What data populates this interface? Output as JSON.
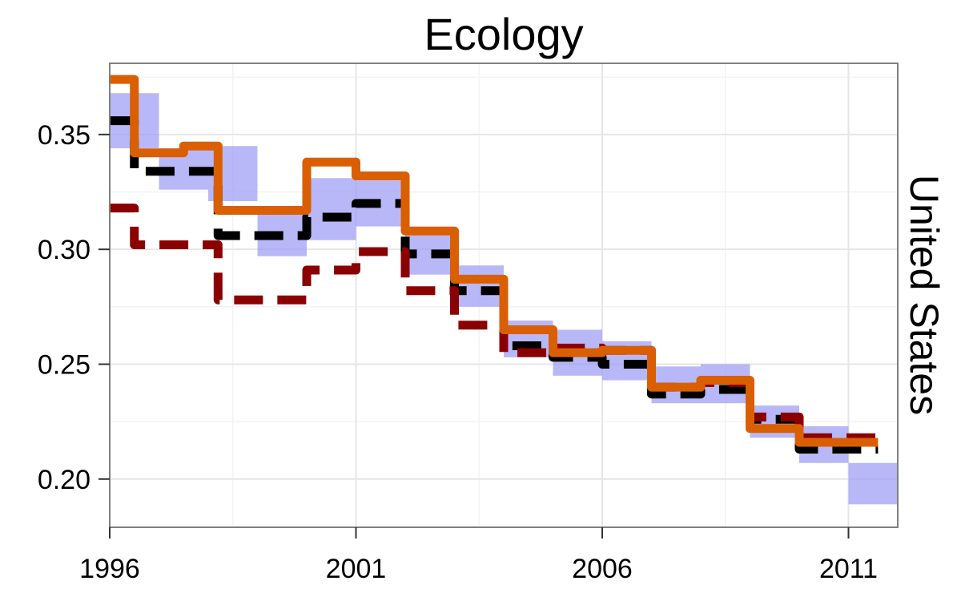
{
  "chart_data": {
    "type": "line",
    "title": "Ecology",
    "facet_label": "United States",
    "xlabel": "",
    "ylabel": "",
    "xlim": [
      1996,
      2012
    ],
    "ylim": [
      0.179,
      0.381
    ],
    "x_ticks": [
      {
        "value": 1996,
        "label": "1996"
      },
      {
        "value": 2001,
        "label": "2001"
      },
      {
        "value": 2006,
        "label": "2006"
      },
      {
        "value": 2011,
        "label": "2011"
      }
    ],
    "y_ticks": [
      {
        "value": 0.2,
        "label": "0.20"
      },
      {
        "value": 0.25,
        "label": "0.25"
      },
      {
        "value": 0.3,
        "label": "0.30"
      },
      {
        "value": 0.35,
        "label": "0.35"
      }
    ],
    "grid": true,
    "legend": "none",
    "colors": {
      "panel_border": "#7f7f7f",
      "grid_major": "#e6e6e6",
      "grid_minor": "#f3f3f3",
      "band": "#9d9df5",
      "black_series": "#000000",
      "red_series": "#8b0000",
      "orange_series": "#d95f02"
    },
    "band": {
      "x": [
        1996,
        1997,
        1998,
        1999,
        2000,
        2001,
        2002,
        2003,
        2004,
        2005,
        2006,
        2007,
        2008,
        2009,
        2010,
        2011
      ],
      "lower": [
        0.344,
        0.326,
        0.321,
        0.297,
        0.304,
        0.31,
        0.289,
        0.275,
        0.253,
        0.245,
        0.243,
        0.233,
        0.233,
        0.218,
        0.207,
        0.189
      ],
      "upper": [
        0.368,
        0.344,
        0.345,
        0.316,
        0.331,
        0.33,
        0.308,
        0.293,
        0.269,
        0.265,
        0.26,
        0.249,
        0.25,
        0.232,
        0.223,
        0.207
      ]
    },
    "series": [
      {
        "style": "dashed",
        "color": "#000000",
        "x": [
          1996,
          1996.5,
          1998.2,
          2000,
          2001,
          2002,
          2003,
          2004,
          2005,
          2006,
          2007,
          2008,
          2009,
          2010,
          2011.6
        ],
        "values": [
          0.356,
          0.334,
          0.306,
          0.314,
          0.32,
          0.298,
          0.282,
          0.258,
          0.253,
          0.25,
          0.237,
          0.239,
          0.226,
          0.213,
          0.202
        ]
      },
      {
        "style": "dashed",
        "color": "#8b0000",
        "x": [
          1996,
          1996.5,
          1998.2,
          2000,
          2001,
          2002,
          2003,
          2004,
          2005,
          2006,
          2007,
          2008,
          2009,
          2010,
          2011.6
        ],
        "values": [
          0.318,
          0.302,
          0.278,
          0.291,
          0.299,
          0.282,
          0.267,
          0.255,
          0.257,
          0.256,
          0.24,
          0.242,
          0.227,
          0.218,
          0.217
        ]
      },
      {
        "style": "solid",
        "color": "#d95f02",
        "x": [
          1996,
          1996.5,
          1997.5,
          1998.2,
          2000,
          2001,
          2002,
          2003,
          2004,
          2005,
          2006,
          2007,
          2008,
          2009,
          2010,
          2011.6
        ],
        "values": [
          0.374,
          0.342,
          0.345,
          0.317,
          0.338,
          0.332,
          0.308,
          0.287,
          0.265,
          0.255,
          0.256,
          0.24,
          0.243,
          0.222,
          0.216,
          0.198
        ]
      }
    ]
  }
}
